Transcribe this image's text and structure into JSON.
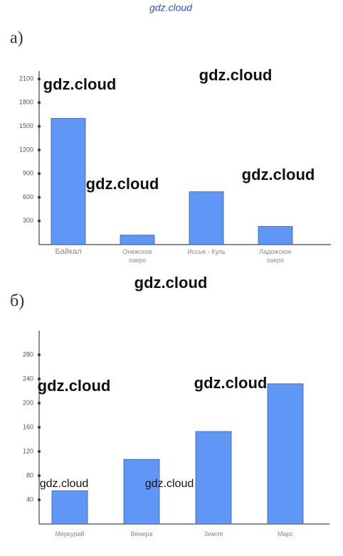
{
  "header": {
    "watermark": "gdz.cloud"
  },
  "parts": [
    "а)",
    "б)"
  ],
  "watermarks": [
    "gdz.cloud",
    "gdz.cloud",
    "gdz.cloud",
    "gdz.cloud",
    "gdz.cloud",
    "gdz.cloud",
    "gdz.cloud",
    "gdz.cloud",
    "gdz.cloud"
  ],
  "chart_data": [
    {
      "type": "bar",
      "categories": [
        "Байкал",
        "Онежское озеро",
        "Иссык - Куль",
        "Ладожское озеро"
      ],
      "values": [
        1600,
        120,
        670,
        230
      ],
      "color": "#6096f5",
      "ylim": [
        0,
        2200
      ],
      "yticks": [
        300,
        600,
        900,
        1200,
        1500,
        1800,
        2100
      ]
    },
    {
      "type": "bar",
      "categories": [
        "Меркурий",
        "Венера",
        "Земля",
        "Марс"
      ],
      "values": [
        55,
        107,
        153,
        232
      ],
      "color": "#6096f5",
      "ylim": [
        0,
        320
      ],
      "yticks": [
        40,
        80,
        120,
        160,
        200,
        240,
        280
      ]
    }
  ]
}
